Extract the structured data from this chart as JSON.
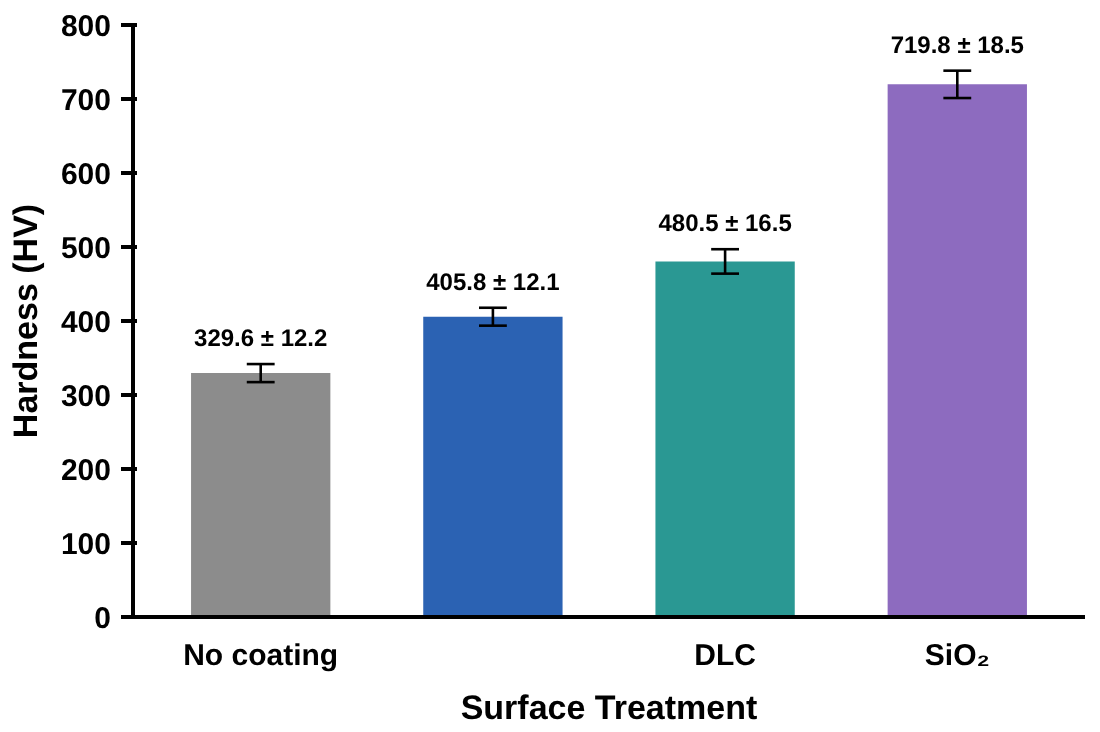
{
  "chart_data": {
    "type": "bar",
    "xlabel": "Surface Treatment",
    "ylabel": "Hardness (HV)",
    "categories": [
      "No coating",
      null,
      "DLC",
      "SiO₂"
    ],
    "values": [
      329.6,
      405.8,
      480.5,
      719.8
    ],
    "errors": [
      12.2,
      12.1,
      16.5,
      18.5
    ],
    "value_labels": [
      "329.6 ± 12.2",
      "405.8 ± 12.1",
      "480.5 ± 16.5",
      "719.8 ± 18.5"
    ],
    "colors": [
      "#8c8c8c",
      "#2b62b3",
      "#2a9893",
      "#8d6bbf"
    ],
    "ylim": [
      0,
      800
    ],
    "yticks": [
      0,
      100,
      200,
      300,
      400,
      500,
      600,
      700,
      800
    ],
    "grid": false
  }
}
